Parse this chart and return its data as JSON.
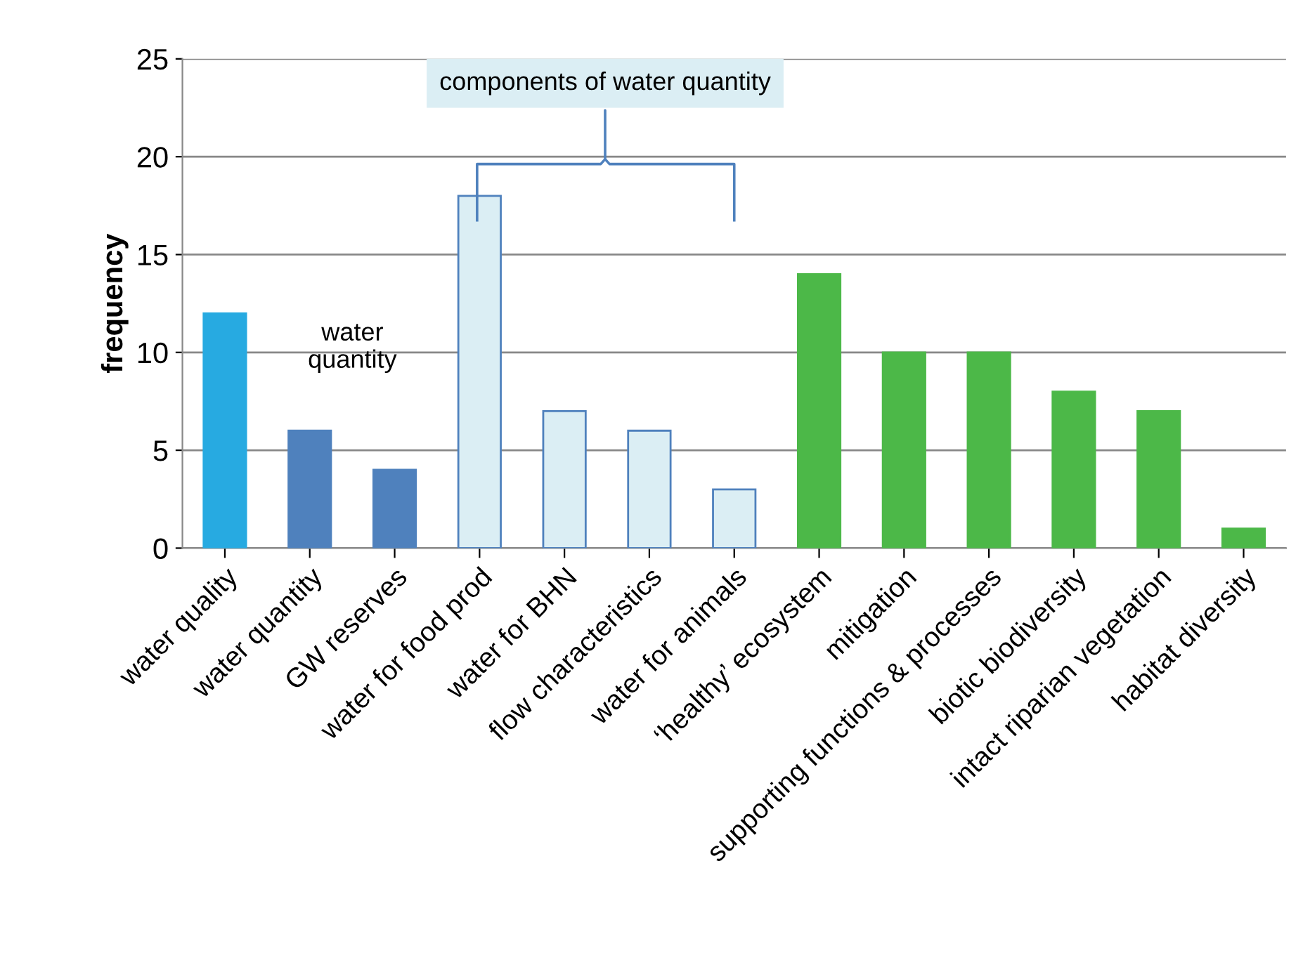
{
  "chart_data": {
    "type": "bar",
    "ylabel": "frequency",
    "categories": [
      "water quality",
      "water quantity",
      "GW reserves",
      "water for food prod",
      "water for BHN",
      "flow characteristics",
      "water for animals",
      "‘healthy’ ecosystem",
      "mitigation",
      "supporting functions & processes",
      "biotic biodiversity",
      "intact riparian vegetation",
      "habitat diversity"
    ],
    "values": [
      12,
      6,
      4,
      18,
      7,
      6,
      3,
      14,
      10,
      10,
      8,
      7,
      1
    ],
    "colors": [
      "#27aae1",
      "#4f81bd",
      "#4f81bd",
      "#dbeef4",
      "#dbeef4",
      "#dbeef4",
      "#dbeef4",
      "#4cb848",
      "#4cb848",
      "#4cb848",
      "#4cb848",
      "#4cb848",
      "#4cb848"
    ],
    "ylim": [
      0,
      25
    ],
    "yticks": [
      0,
      5,
      10,
      15,
      20,
      25
    ],
    "grid": "y",
    "annotations": [
      "water\nquantity",
      "components of water quantity"
    ]
  }
}
